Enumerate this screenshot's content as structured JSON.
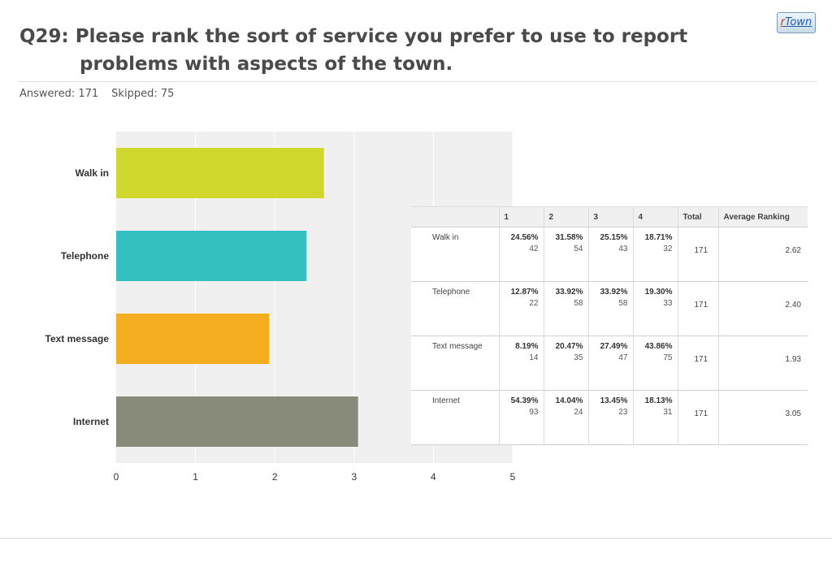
{
  "logo": {
    "r": "r",
    "rest": "Town"
  },
  "title_line1": "Q29: Please rank the sort of service you prefer to use to report",
  "title_line2": "problems with aspects of the town.",
  "answered": "Answered: 171",
  "skipped": "Skipped: 75",
  "chart_data": {
    "type": "bar",
    "orientation": "horizontal",
    "categories": [
      "Walk in",
      "Telephone",
      "Text message",
      "Internet"
    ],
    "values": [
      2.62,
      2.4,
      1.93,
      3.05
    ],
    "xlim": [
      0,
      5
    ],
    "xticks": [
      "0",
      "1",
      "2",
      "3",
      "4",
      "5"
    ],
    "colors": [
      "#d0d72d",
      "#34bfc1",
      "#f5ae1f",
      "#898b7a"
    ],
    "grid": true,
    "title": "",
    "xlabel": "",
    "ylabel": ""
  },
  "table": {
    "headers": [
      "",
      "1",
      "2",
      "3",
      "4",
      "Total",
      "Average Ranking"
    ],
    "rows": [
      {
        "label": "Walk in",
        "cells": [
          {
            "pct": "24.56%",
            "n": "42"
          },
          {
            "pct": "31.58%",
            "n": "54"
          },
          {
            "pct": "25.15%",
            "n": "43"
          },
          {
            "pct": "18.71%",
            "n": "32"
          }
        ],
        "total": "171",
        "avg": "2.62"
      },
      {
        "label": "Telephone",
        "cells": [
          {
            "pct": "12.87%",
            "n": "22"
          },
          {
            "pct": "33.92%",
            "n": "58"
          },
          {
            "pct": "33.92%",
            "n": "58"
          },
          {
            "pct": "19.30%",
            "n": "33"
          }
        ],
        "total": "171",
        "avg": "2.40"
      },
      {
        "label": "Text message",
        "cells": [
          {
            "pct": "8.19%",
            "n": "14"
          },
          {
            "pct": "20.47%",
            "n": "35"
          },
          {
            "pct": "27.49%",
            "n": "47"
          },
          {
            "pct": "43.86%",
            "n": "75"
          }
        ],
        "total": "171",
        "avg": "1.93"
      },
      {
        "label": "Internet",
        "cells": [
          {
            "pct": "54.39%",
            "n": "93"
          },
          {
            "pct": "14.04%",
            "n": "24"
          },
          {
            "pct": "13.45%",
            "n": "23"
          },
          {
            "pct": "18.13%",
            "n": "31"
          }
        ],
        "total": "171",
        "avg": "3.05"
      }
    ]
  }
}
